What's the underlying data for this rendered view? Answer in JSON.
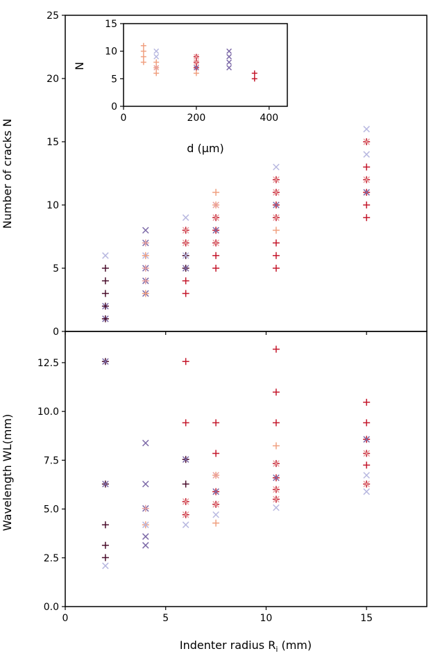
{
  "colors": {
    "series_dark": "#4a0e2c",
    "series_red": "#c4172b",
    "series_peach": "#f0a080",
    "series_pink": "#e8a0a0",
    "series_lavender": "#b8b8e0",
    "series_purple": "#7d6aa8",
    "axis": "#000000"
  },
  "chart_data": [
    {
      "id": "cracks",
      "type": "scatter",
      "xlabel": "",
      "ylabel": "Number of cracks N",
      "xlim": [
        0,
        18
      ],
      "ylim": [
        0,
        25
      ],
      "xticks": [
        0,
        5,
        10,
        15
      ],
      "yticks": [
        0,
        5,
        10,
        15,
        20,
        25
      ],
      "ytick_labels": [
        "0",
        "5",
        "10",
        "15",
        "20",
        "25"
      ],
      "points": [
        {
          "x": 2,
          "y": 6,
          "m": "x",
          "c": "lavender"
        },
        {
          "x": 2,
          "y": 5,
          "m": "+",
          "c": "dark"
        },
        {
          "x": 2,
          "y": 4,
          "m": "+",
          "c": "dark"
        },
        {
          "x": 2,
          "y": 3,
          "m": "+",
          "c": "dark"
        },
        {
          "x": 2,
          "y": 2,
          "m": "x",
          "c": "purple"
        },
        {
          "x": 2,
          "y": 2,
          "m": "+",
          "c": "dark"
        },
        {
          "x": 2,
          "y": 1,
          "m": "x",
          "c": "purple"
        },
        {
          "x": 2,
          "y": 1,
          "m": "+",
          "c": "dark"
        },
        {
          "x": 4,
          "y": 8,
          "m": "x",
          "c": "purple"
        },
        {
          "x": 4,
          "y": 7,
          "m": "x",
          "c": "purple"
        },
        {
          "x": 4,
          "y": 7,
          "m": "+",
          "c": "pink"
        },
        {
          "x": 4,
          "y": 6,
          "m": "x",
          "c": "lavender"
        },
        {
          "x": 4,
          "y": 6,
          "m": "+",
          "c": "peach"
        },
        {
          "x": 4,
          "y": 5,
          "m": "x",
          "c": "purple"
        },
        {
          "x": 4,
          "y": 5,
          "m": "+",
          "c": "pink"
        },
        {
          "x": 4,
          "y": 4,
          "m": "x",
          "c": "purple"
        },
        {
          "x": 4,
          "y": 4,
          "m": "+",
          "c": "pink"
        },
        {
          "x": 4,
          "y": 3,
          "m": "x",
          "c": "purple"
        },
        {
          "x": 4,
          "y": 3,
          "m": "+",
          "c": "peach"
        },
        {
          "x": 6,
          "y": 9,
          "m": "x",
          "c": "lavender"
        },
        {
          "x": 6,
          "y": 8,
          "m": "+",
          "c": "red"
        },
        {
          "x": 6,
          "y": 8,
          "m": "x",
          "c": "pink"
        },
        {
          "x": 6,
          "y": 7,
          "m": "+",
          "c": "red"
        },
        {
          "x": 6,
          "y": 7,
          "m": "x",
          "c": "pink"
        },
        {
          "x": 6,
          "y": 6,
          "m": "+",
          "c": "dark"
        },
        {
          "x": 6,
          "y": 6,
          "m": "x",
          "c": "lavender"
        },
        {
          "x": 6,
          "y": 5,
          "m": "+",
          "c": "dark"
        },
        {
          "x": 6,
          "y": 5,
          "m": "x",
          "c": "purple"
        },
        {
          "x": 6,
          "y": 4,
          "m": "+",
          "c": "red"
        },
        {
          "x": 6,
          "y": 3,
          "m": "+",
          "c": "red"
        },
        {
          "x": 7.5,
          "y": 11,
          "m": "+",
          "c": "peach"
        },
        {
          "x": 7.5,
          "y": 10,
          "m": "+",
          "c": "peach"
        },
        {
          "x": 7.5,
          "y": 10,
          "m": "x",
          "c": "pink"
        },
        {
          "x": 7.5,
          "y": 9,
          "m": "+",
          "c": "red"
        },
        {
          "x": 7.5,
          "y": 9,
          "m": "x",
          "c": "pink"
        },
        {
          "x": 7.5,
          "y": 8,
          "m": "+",
          "c": "red"
        },
        {
          "x": 7.5,
          "y": 8,
          "m": "x",
          "c": "purple"
        },
        {
          "x": 7.5,
          "y": 7,
          "m": "+",
          "c": "red"
        },
        {
          "x": 7.5,
          "y": 7,
          "m": "x",
          "c": "pink"
        },
        {
          "x": 7.5,
          "y": 6,
          "m": "+",
          "c": "red"
        },
        {
          "x": 7.5,
          "y": 5,
          "m": "+",
          "c": "red"
        },
        {
          "x": 10.5,
          "y": 13,
          "m": "x",
          "c": "lavender"
        },
        {
          "x": 10.5,
          "y": 12,
          "m": "+",
          "c": "red"
        },
        {
          "x": 10.5,
          "y": 12,
          "m": "x",
          "c": "pink"
        },
        {
          "x": 10.5,
          "y": 11,
          "m": "+",
          "c": "red"
        },
        {
          "x": 10.5,
          "y": 11,
          "m": "x",
          "c": "pink"
        },
        {
          "x": 10.5,
          "y": 10,
          "m": "+",
          "c": "red"
        },
        {
          "x": 10.5,
          "y": 10,
          "m": "x",
          "c": "purple"
        },
        {
          "x": 10.5,
          "y": 9,
          "m": "+",
          "c": "red"
        },
        {
          "x": 10.5,
          "y": 9,
          "m": "x",
          "c": "pink"
        },
        {
          "x": 10.5,
          "y": 8,
          "m": "+",
          "c": "peach"
        },
        {
          "x": 10.5,
          "y": 7,
          "m": "+",
          "c": "red"
        },
        {
          "x": 10.5,
          "y": 6,
          "m": "+",
          "c": "red"
        },
        {
          "x": 10.5,
          "y": 5,
          "m": "+",
          "c": "red"
        },
        {
          "x": 15,
          "y": 16,
          "m": "x",
          "c": "lavender"
        },
        {
          "x": 15,
          "y": 15,
          "m": "+",
          "c": "red"
        },
        {
          "x": 15,
          "y": 15,
          "m": "x",
          "c": "pink"
        },
        {
          "x": 15,
          "y": 14,
          "m": "x",
          "c": "lavender"
        },
        {
          "x": 15,
          "y": 13,
          "m": "+",
          "c": "red"
        },
        {
          "x": 15,
          "y": 12,
          "m": "+",
          "c": "red"
        },
        {
          "x": 15,
          "y": 12,
          "m": "x",
          "c": "pink"
        },
        {
          "x": 15,
          "y": 11,
          "m": "+",
          "c": "red"
        },
        {
          "x": 15,
          "y": 11,
          "m": "x",
          "c": "purple"
        },
        {
          "x": 15,
          "y": 10,
          "m": "+",
          "c": "red"
        },
        {
          "x": 15,
          "y": 9,
          "m": "+",
          "c": "red"
        }
      ]
    },
    {
      "id": "wavelength",
      "type": "scatter",
      "xlabel": "Indenter radius Ri (mm)",
      "ylabel": "Wavelength WL(mm)",
      "xlim": [
        0,
        18
      ],
      "ylim": [
        0,
        14.1
      ],
      "xticks": [
        0,
        5,
        10,
        15
      ],
      "yticks": [
        0,
        2.5,
        5,
        7.5,
        10,
        12.5
      ],
      "ytick_labels": [
        "0.0",
        "2.5",
        "5.0",
        "7.5",
        "10.0",
        "12.5"
      ],
      "points": [
        {
          "x": 2,
          "y": 12.56,
          "m": "+",
          "c": "dark"
        },
        {
          "x": 2,
          "y": 12.56,
          "m": "x",
          "c": "purple"
        },
        {
          "x": 2,
          "y": 6.28,
          "m": "+",
          "c": "dark"
        },
        {
          "x": 2,
          "y": 6.28,
          "m": "x",
          "c": "purple"
        },
        {
          "x": 2,
          "y": 4.19,
          "m": "+",
          "c": "dark"
        },
        {
          "x": 2,
          "y": 3.14,
          "m": "+",
          "c": "dark"
        },
        {
          "x": 2,
          "y": 2.51,
          "m": "+",
          "c": "dark"
        },
        {
          "x": 2,
          "y": 2.09,
          "m": "x",
          "c": "lavender"
        },
        {
          "x": 4,
          "y": 8.38,
          "m": "x",
          "c": "purple"
        },
        {
          "x": 4,
          "y": 6.28,
          "m": "x",
          "c": "purple"
        },
        {
          "x": 4,
          "y": 5.03,
          "m": "x",
          "c": "purple"
        },
        {
          "x": 4,
          "y": 5.03,
          "m": "+",
          "c": "pink"
        },
        {
          "x": 4,
          "y": 4.19,
          "m": "+",
          "c": "peach"
        },
        {
          "x": 4,
          "y": 4.19,
          "m": "x",
          "c": "lavender"
        },
        {
          "x": 4,
          "y": 3.59,
          "m": "x",
          "c": "purple"
        },
        {
          "x": 4,
          "y": 3.14,
          "m": "x",
          "c": "purple"
        },
        {
          "x": 6,
          "y": 12.56,
          "m": "+",
          "c": "red"
        },
        {
          "x": 6,
          "y": 9.42,
          "m": "+",
          "c": "red"
        },
        {
          "x": 6,
          "y": 7.54,
          "m": "+",
          "c": "dark"
        },
        {
          "x": 6,
          "y": 7.54,
          "m": "x",
          "c": "purple"
        },
        {
          "x": 6,
          "y": 6.28,
          "m": "+",
          "c": "dark"
        },
        {
          "x": 6,
          "y": 5.38,
          "m": "+",
          "c": "red"
        },
        {
          "x": 6,
          "y": 5.38,
          "m": "x",
          "c": "pink"
        },
        {
          "x": 6,
          "y": 4.71,
          "m": "+",
          "c": "red"
        },
        {
          "x": 6,
          "y": 4.71,
          "m": "x",
          "c": "pink"
        },
        {
          "x": 6,
          "y": 4.19,
          "m": "x",
          "c": "lavender"
        },
        {
          "x": 7.5,
          "y": 9.42,
          "m": "+",
          "c": "red"
        },
        {
          "x": 7.5,
          "y": 7.85,
          "m": "+",
          "c": "red"
        },
        {
          "x": 7.5,
          "y": 6.73,
          "m": "+",
          "c": "peach"
        },
        {
          "x": 7.5,
          "y": 6.73,
          "m": "x",
          "c": "pink"
        },
        {
          "x": 7.5,
          "y": 5.89,
          "m": "+",
          "c": "red"
        },
        {
          "x": 7.5,
          "y": 5.89,
          "m": "x",
          "c": "purple"
        },
        {
          "x": 7.5,
          "y": 5.24,
          "m": "+",
          "c": "red"
        },
        {
          "x": 7.5,
          "y": 5.24,
          "m": "x",
          "c": "pink"
        },
        {
          "x": 7.5,
          "y": 4.71,
          "m": "x",
          "c": "lavender"
        },
        {
          "x": 7.5,
          "y": 4.28,
          "m": "+",
          "c": "peach"
        },
        {
          "x": 10.5,
          "y": 13.19,
          "m": "+",
          "c": "red"
        },
        {
          "x": 10.5,
          "y": 10.99,
          "m": "+",
          "c": "red"
        },
        {
          "x": 10.5,
          "y": 9.42,
          "m": "+",
          "c": "red"
        },
        {
          "x": 10.5,
          "y": 8.24,
          "m": "+",
          "c": "peach"
        },
        {
          "x": 10.5,
          "y": 7.33,
          "m": "+",
          "c": "red"
        },
        {
          "x": 10.5,
          "y": 7.33,
          "m": "x",
          "c": "pink"
        },
        {
          "x": 10.5,
          "y": 6.6,
          "m": "+",
          "c": "red"
        },
        {
          "x": 10.5,
          "y": 6.6,
          "m": "x",
          "c": "purple"
        },
        {
          "x": 10.5,
          "y": 6.0,
          "m": "+",
          "c": "red"
        },
        {
          "x": 10.5,
          "y": 6.0,
          "m": "x",
          "c": "pink"
        },
        {
          "x": 10.5,
          "y": 5.5,
          "m": "+",
          "c": "red"
        },
        {
          "x": 10.5,
          "y": 5.5,
          "m": "x",
          "c": "pink"
        },
        {
          "x": 10.5,
          "y": 5.07,
          "m": "x",
          "c": "lavender"
        },
        {
          "x": 15,
          "y": 10.47,
          "m": "+",
          "c": "red"
        },
        {
          "x": 15,
          "y": 9.42,
          "m": "+",
          "c": "red"
        },
        {
          "x": 15,
          "y": 8.57,
          "m": "+",
          "c": "red"
        },
        {
          "x": 15,
          "y": 8.57,
          "m": "x",
          "c": "purple"
        },
        {
          "x": 15,
          "y": 7.85,
          "m": "+",
          "c": "red"
        },
        {
          "x": 15,
          "y": 7.85,
          "m": "x",
          "c": "pink"
        },
        {
          "x": 15,
          "y": 7.25,
          "m": "+",
          "c": "red"
        },
        {
          "x": 15,
          "y": 6.73,
          "m": "x",
          "c": "lavender"
        },
        {
          "x": 15,
          "y": 6.28,
          "m": "+",
          "c": "red"
        },
        {
          "x": 15,
          "y": 6.28,
          "m": "x",
          "c": "pink"
        },
        {
          "x": 15,
          "y": 5.89,
          "m": "x",
          "c": "lavender"
        }
      ]
    },
    {
      "id": "inset",
      "type": "scatter",
      "xlabel": "d (µm)",
      "ylabel": "N",
      "xlim": [
        0,
        450
      ],
      "ylim": [
        0,
        15
      ],
      "xticks": [
        0,
        200,
        400
      ],
      "yticks": [
        0,
        5,
        10,
        15
      ],
      "ytick_labels": [
        "0",
        "5",
        "10",
        "15"
      ],
      "points": [
        {
          "x": 55,
          "y": 11,
          "m": "+",
          "c": "peach"
        },
        {
          "x": 55,
          "y": 10,
          "m": "+",
          "c": "peach"
        },
        {
          "x": 55,
          "y": 9,
          "m": "+",
          "c": "peach"
        },
        {
          "x": 55,
          "y": 8,
          "m": "+",
          "c": "peach"
        },
        {
          "x": 90,
          "y": 10,
          "m": "x",
          "c": "lavender"
        },
        {
          "x": 90,
          "y": 9,
          "m": "x",
          "c": "lavender"
        },
        {
          "x": 90,
          "y": 8,
          "m": "+",
          "c": "peach"
        },
        {
          "x": 90,
          "y": 7,
          "m": "+",
          "c": "peach"
        },
        {
          "x": 90,
          "y": 7,
          "m": "x",
          "c": "pink"
        },
        {
          "x": 90,
          "y": 6,
          "m": "+",
          "c": "peach"
        },
        {
          "x": 200,
          "y": 9,
          "m": "+",
          "c": "red"
        },
        {
          "x": 200,
          "y": 9,
          "m": "x",
          "c": "pink"
        },
        {
          "x": 200,
          "y": 8,
          "m": "+",
          "c": "red"
        },
        {
          "x": 200,
          "y": 8,
          "m": "x",
          "c": "pink"
        },
        {
          "x": 200,
          "y": 7,
          "m": "+",
          "c": "red"
        },
        {
          "x": 200,
          "y": 7,
          "m": "x",
          "c": "purple"
        },
        {
          "x": 200,
          "y": 6,
          "m": "+",
          "c": "peach"
        },
        {
          "x": 290,
          "y": 10,
          "m": "x",
          "c": "purple"
        },
        {
          "x": 290,
          "y": 9,
          "m": "x",
          "c": "purple"
        },
        {
          "x": 290,
          "y": 8,
          "m": "x",
          "c": "purple"
        },
        {
          "x": 290,
          "y": 7,
          "m": "x",
          "c": "purple"
        },
        {
          "x": 360,
          "y": 6,
          "m": "+",
          "c": "red"
        },
        {
          "x": 360,
          "y": 5,
          "m": "+",
          "c": "red"
        }
      ]
    }
  ]
}
